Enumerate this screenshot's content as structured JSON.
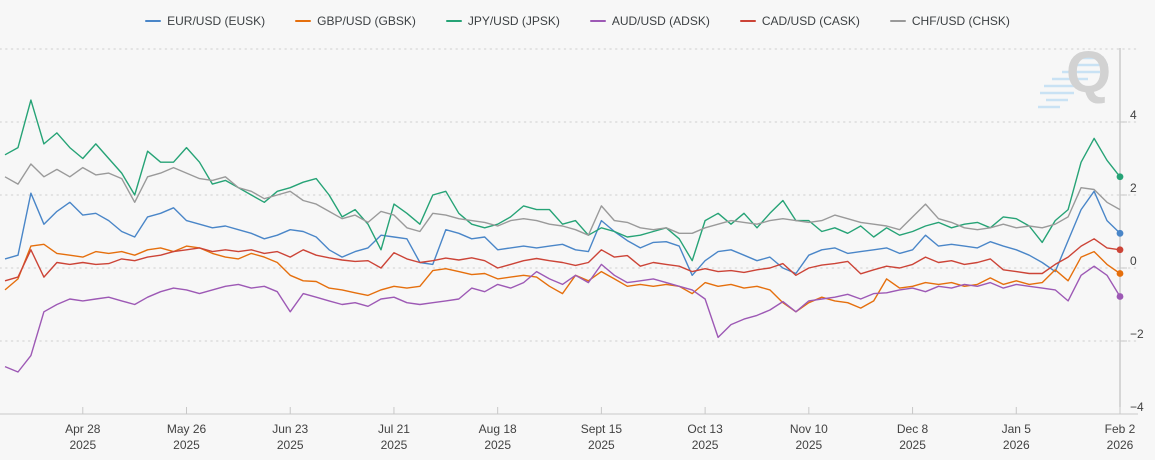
{
  "watermark": {
    "text": "Q"
  },
  "chart_data": {
    "type": "line",
    "title": "",
    "xlabel": "",
    "ylabel": "",
    "x_unit": "weeks since 2025-04-07, 2 samples per week",
    "x_start_week": 0,
    "x_end_week": 43,
    "ylim": [
      -4,
      6
    ],
    "grid_values": [
      6,
      4,
      2,
      0,
      -2
    ],
    "baseline_value": -4,
    "legend_position": "top-center",
    "grid_style": "dotted",
    "y_ticks": [
      {
        "label": "4",
        "value": 4
      },
      {
        "label": "2",
        "value": 2
      },
      {
        "label": "0",
        "value": 0
      },
      {
        "label": "−2",
        "value": -2
      },
      {
        "label": "−4",
        "value": -4
      }
    ],
    "x_ticks": [
      {
        "label": "Apr 28",
        "year": "2025",
        "week": 3
      },
      {
        "label": "May 26",
        "year": "2025",
        "week": 7
      },
      {
        "label": "Jun 23",
        "year": "2025",
        "week": 11
      },
      {
        "label": "Jul 21",
        "year": "2025",
        "week": 15
      },
      {
        "label": "Aug 18",
        "year": "2025",
        "week": 19
      },
      {
        "label": "Sept 15",
        "year": "2025",
        "week": 23
      },
      {
        "label": "Oct 13",
        "year": "2025",
        "week": 27
      },
      {
        "label": "Nov 10",
        "year": "2025",
        "week": 31
      },
      {
        "label": "Dec 8",
        "year": "2025",
        "week": 35
      },
      {
        "label": "Jan 5",
        "year": "2026",
        "week": 39
      },
      {
        "label": "Feb 2",
        "year": "2026",
        "week": 43
      }
    ],
    "series": [
      {
        "name": "EUR/USD (EUSK)",
        "color": "#4a86c8",
        "end_dot": true,
        "values": [
          0.25,
          0.35,
          2.05,
          1.2,
          1.55,
          1.8,
          1.45,
          1.5,
          1.3,
          1.0,
          0.85,
          1.4,
          1.5,
          1.65,
          1.3,
          1.2,
          1.1,
          1.15,
          1.05,
          0.95,
          0.8,
          0.9,
          1.05,
          1.0,
          0.85,
          0.5,
          0.3,
          0.45,
          0.55,
          0.9,
          0.85,
          0.8,
          0.15,
          0.1,
          1.05,
          0.95,
          0.8,
          0.85,
          0.5,
          0.55,
          0.6,
          0.55,
          0.6,
          0.65,
          0.5,
          0.45,
          1.3,
          1.0,
          0.75,
          0.55,
          0.7,
          0.72,
          0.6,
          -0.2,
          0.2,
          0.45,
          0.5,
          0.35,
          0.2,
          0.3,
          0.0,
          -0.15,
          0.35,
          0.5,
          0.55,
          0.4,
          0.45,
          0.5,
          0.55,
          0.4,
          0.5,
          0.9,
          0.6,
          0.65,
          0.6,
          0.55,
          0.72,
          0.6,
          0.5,
          0.35,
          0.15,
          -0.1,
          0.75,
          1.6,
          2.1,
          1.3,
          0.95
        ]
      },
      {
        "name": "GBP/USD (GBSK)",
        "color": "#e56f0d",
        "end_dot": true,
        "values": [
          -0.6,
          -0.3,
          0.6,
          0.65,
          0.4,
          0.35,
          0.3,
          0.45,
          0.4,
          0.45,
          0.35,
          0.5,
          0.55,
          0.45,
          0.6,
          0.55,
          0.4,
          0.3,
          0.25,
          0.4,
          0.3,
          0.15,
          -0.2,
          -0.35,
          -0.37,
          -0.55,
          -0.6,
          -0.68,
          -0.75,
          -0.6,
          -0.5,
          -0.55,
          -0.5,
          -0.07,
          -0.02,
          -0.1,
          -0.18,
          -0.15,
          -0.3,
          -0.25,
          -0.2,
          -0.25,
          -0.5,
          -0.7,
          -0.2,
          -0.35,
          -0.1,
          -0.3,
          -0.5,
          -0.45,
          -0.5,
          -0.45,
          -0.5,
          -0.7,
          -0.4,
          -0.5,
          -0.45,
          -0.55,
          -0.5,
          -0.6,
          -0.95,
          -1.2,
          -0.95,
          -0.8,
          -0.9,
          -0.95,
          -1.1,
          -0.9,
          -0.3,
          -0.55,
          -0.5,
          -0.4,
          -0.45,
          -0.4,
          -0.5,
          -0.45,
          -0.27,
          -0.45,
          -0.35,
          -0.45,
          -0.4,
          -0.05,
          -0.35,
          0.3,
          0.45,
          0.1,
          -0.15
        ]
      },
      {
        "name": "JPY/USD (JPSK)",
        "color": "#26a376",
        "end_dot": true,
        "values": [
          3.1,
          3.3,
          4.6,
          3.4,
          3.7,
          3.3,
          3.0,
          3.4,
          3.0,
          2.6,
          2.0,
          3.2,
          2.9,
          2.9,
          3.3,
          2.9,
          2.3,
          2.4,
          2.2,
          2.0,
          1.8,
          2.1,
          2.2,
          2.35,
          2.45,
          2.0,
          1.4,
          1.6,
          1.2,
          0.5,
          1.75,
          1.5,
          1.2,
          2.0,
          2.1,
          1.5,
          1.2,
          1.1,
          1.2,
          1.4,
          1.7,
          1.6,
          1.6,
          1.2,
          1.3,
          0.9,
          1.1,
          1.0,
          0.85,
          0.9,
          1.0,
          1.1,
          0.8,
          0.2,
          1.3,
          1.5,
          1.2,
          1.5,
          1.1,
          1.5,
          1.85,
          1.3,
          1.3,
          1.0,
          1.1,
          0.95,
          1.15,
          0.85,
          1.1,
          0.9,
          1.0,
          1.15,
          1.25,
          1.1,
          1.2,
          1.25,
          1.1,
          1.4,
          1.35,
          1.15,
          0.7,
          1.3,
          1.6,
          2.9,
          3.55,
          2.95,
          2.5
        ]
      },
      {
        "name": "AUD/USD (ADSK)",
        "color": "#9d59b5",
        "end_dot": true,
        "values": [
          -2.7,
          -2.85,
          -2.4,
          -1.2,
          -1.0,
          -0.85,
          -0.9,
          -0.85,
          -0.8,
          -0.9,
          -1.0,
          -0.8,
          -0.65,
          -0.55,
          -0.6,
          -0.7,
          -0.6,
          -0.5,
          -0.45,
          -0.55,
          -0.5,
          -0.65,
          -1.2,
          -0.7,
          -0.8,
          -0.9,
          -1.0,
          -0.95,
          -1.05,
          -0.85,
          -0.8,
          -0.95,
          -1.0,
          -0.95,
          -0.9,
          -0.85,
          -0.55,
          -0.65,
          -0.45,
          -0.55,
          -0.4,
          -0.1,
          -0.3,
          -0.45,
          -0.2,
          -0.4,
          0.1,
          -0.2,
          -0.4,
          -0.35,
          -0.3,
          -0.4,
          -0.5,
          -0.6,
          -0.85,
          -1.9,
          -1.55,
          -1.4,
          -1.3,
          -1.15,
          -0.92,
          -1.2,
          -0.9,
          -0.85,
          -0.8,
          -0.72,
          -0.85,
          -0.7,
          -0.68,
          -0.6,
          -0.55,
          -0.65,
          -0.5,
          -0.55,
          -0.45,
          -0.5,
          -0.4,
          -0.55,
          -0.45,
          -0.5,
          -0.55,
          -0.6,
          -0.9,
          -0.2,
          0.05,
          -0.2,
          -0.78
        ]
      },
      {
        "name": "CAD/USD (CASK)",
        "color": "#cc4437",
        "end_dot": true,
        "values": [
          -0.35,
          -0.25,
          0.5,
          -0.25,
          0.15,
          0.1,
          0.15,
          0.1,
          0.12,
          0.25,
          0.2,
          0.3,
          0.35,
          0.45,
          0.5,
          0.55,
          0.45,
          0.5,
          0.45,
          0.5,
          0.4,
          0.45,
          0.3,
          0.5,
          0.35,
          0.28,
          0.22,
          0.18,
          0.2,
          0.0,
          0.42,
          0.25,
          0.15,
          0.2,
          0.27,
          0.22,
          0.28,
          0.2,
          0.0,
          0.1,
          0.2,
          0.26,
          0.2,
          0.15,
          0.07,
          0.15,
          0.5,
          0.3,
          0.34,
          0.05,
          0.15,
          0.1,
          0.05,
          -0.1,
          -0.02,
          -0.1,
          -0.07,
          -0.12,
          -0.05,
          0.0,
          0.12,
          -0.2,
          0.0,
          0.08,
          0.12,
          0.18,
          -0.16,
          -0.05,
          0.05,
          0.0,
          0.1,
          0.3,
          0.15,
          0.2,
          0.1,
          0.15,
          0.25,
          -0.05,
          -0.1,
          -0.15,
          -0.15,
          0.1,
          0.3,
          0.6,
          0.8,
          0.55,
          0.5
        ]
      },
      {
        "name": "CHF/USD (CHSK)",
        "color": "#9a9a9a",
        "end_dot": false,
        "values": [
          2.5,
          2.3,
          2.85,
          2.5,
          2.7,
          2.5,
          2.75,
          2.55,
          2.6,
          2.45,
          1.8,
          2.5,
          2.6,
          2.75,
          2.6,
          2.45,
          2.4,
          2.5,
          2.2,
          2.1,
          1.9,
          2.0,
          2.1,
          1.85,
          1.75,
          1.55,
          1.35,
          1.45,
          1.25,
          1.55,
          1.45,
          1.1,
          1.0,
          1.5,
          1.45,
          1.35,
          1.3,
          1.25,
          1.15,
          1.3,
          1.35,
          1.3,
          1.2,
          1.15,
          1.05,
          0.9,
          1.7,
          1.3,
          1.25,
          1.1,
          1.05,
          1.1,
          0.95,
          0.95,
          1.1,
          1.2,
          1.3,
          1.25,
          1.2,
          1.3,
          1.35,
          1.3,
          1.25,
          1.3,
          1.45,
          1.35,
          1.25,
          1.2,
          1.15,
          1.05,
          1.4,
          1.75,
          1.35,
          1.25,
          1.1,
          1.05,
          1.1,
          1.2,
          1.1,
          1.15,
          1.1,
          1.2,
          1.4,
          2.2,
          2.15,
          1.8,
          1.6
        ]
      }
    ]
  }
}
